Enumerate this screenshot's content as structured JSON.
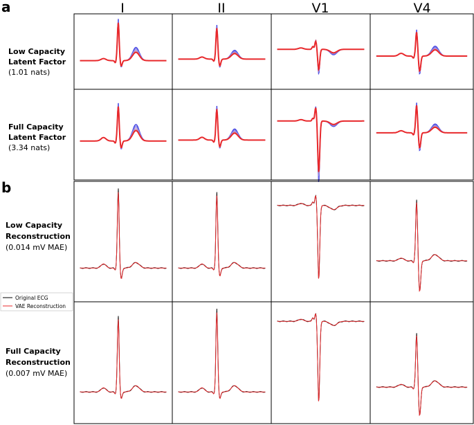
{
  "panel_a": {
    "label": "a",
    "columns": [
      "I",
      "II",
      "V1",
      "V4"
    ],
    "rows": [
      {
        "title": [
          "Low Capacity",
          "Latent Factor"
        ],
        "note": "(1.01 nats)"
      },
      {
        "title": [
          "Full Capacity",
          "Latent Factor"
        ],
        "note": "(3.34 nats)"
      }
    ]
  },
  "panel_b": {
    "label": "b",
    "rows": [
      {
        "title": [
          "Low Capacity",
          "Reconstruction"
        ],
        "note": "(0.014 mV MAE)"
      },
      {
        "title": [
          "Full Capacity",
          "Reconstruction"
        ],
        "note": "(0.007 mV MAE)"
      }
    ],
    "legend": [
      "Original ECG",
      "VAE Reconstruction"
    ]
  }
}
